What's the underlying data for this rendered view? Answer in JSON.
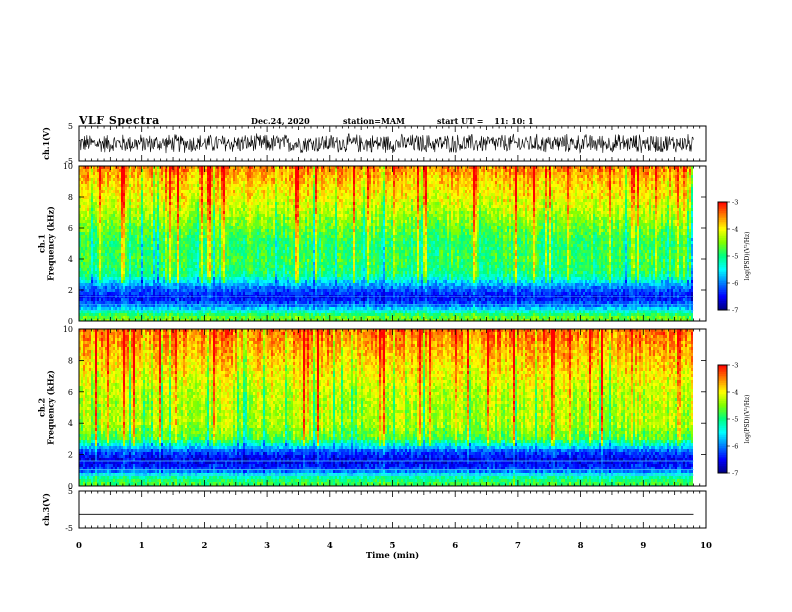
{
  "header": {
    "title": "VLF Spectra",
    "date": "Dec.24, 2020",
    "station": "station=MAM",
    "start_label": "start  UT  =",
    "start_time": "11: 10: 1"
  },
  "chart_data": [
    {
      "type": "line",
      "panel": "waveform-ch1",
      "ylabel": "ch.1(V)",
      "ylim": [
        -5,
        5
      ],
      "yticks": [
        5,
        -5
      ],
      "x_range": [
        0,
        9.8
      ],
      "series_amplitude_range": [
        -3,
        3
      ],
      "color": "#000000"
    },
    {
      "type": "heatmap",
      "panel": "spectrogram-ch1",
      "ylabel": "ch.1\nFrequency (kHz)",
      "ylim": [
        0,
        10
      ],
      "yticks": [
        0,
        2,
        4,
        6,
        8,
        10
      ],
      "x_range": [
        0,
        9.8
      ],
      "colorbar": {
        "label": "log(PSD)(V²/Hz)",
        "range": [
          -7,
          -3
        ],
        "ticks": [
          -3,
          -4,
          -5,
          -6,
          -7
        ]
      },
      "frequency_profile_kHz": [
        {
          "f": 0.2,
          "v": -4.6
        },
        {
          "f": 0.5,
          "v": -5.0
        },
        {
          "f": 0.9,
          "v": -5.9
        },
        {
          "f": 1.5,
          "v": -6.5
        },
        {
          "f": 2.2,
          "v": -6.0
        },
        {
          "f": 3.0,
          "v": -5.0
        },
        {
          "f": 4.0,
          "v": -4.8
        },
        {
          "f": 5.0,
          "v": -4.9
        },
        {
          "f": 6.0,
          "v": -4.6
        },
        {
          "f": 7.0,
          "v": -4.3
        },
        {
          "f": 8.0,
          "v": -4.0
        },
        {
          "f": 9.0,
          "v": -3.8
        },
        {
          "f": 10.0,
          "v": -3.5
        }
      ]
    },
    {
      "type": "heatmap",
      "panel": "spectrogram-ch2",
      "ylabel": "ch.2\nFrequency (kHz)",
      "ylim": [
        0,
        10
      ],
      "yticks": [
        0,
        2,
        4,
        6,
        8,
        10
      ],
      "x_range": [
        0,
        9.8
      ],
      "colorbar": {
        "label": "log(PSD)(V²/Hz)",
        "range": [
          -7,
          -3
        ],
        "ticks": [
          -3,
          -4,
          -5,
          -6,
          -7
        ]
      },
      "frequency_profile_kHz": [
        {
          "f": 0.2,
          "v": -4.8
        },
        {
          "f": 0.6,
          "v": -5.2
        },
        {
          "f": 1.0,
          "v": -6.2
        },
        {
          "f": 1.6,
          "v": -6.6
        },
        {
          "f": 2.2,
          "v": -6.2
        },
        {
          "f": 3.0,
          "v": -4.7
        },
        {
          "f": 4.0,
          "v": -4.3
        },
        {
          "f": 5.0,
          "v": -4.3
        },
        {
          "f": 6.0,
          "v": -4.2
        },
        {
          "f": 7.0,
          "v": -4.0
        },
        {
          "f": 8.0,
          "v": -3.8
        },
        {
          "f": 9.0,
          "v": -3.6
        },
        {
          "f": 10.0,
          "v": -3.4
        }
      ]
    },
    {
      "type": "line",
      "panel": "waveform-ch3",
      "ylabel": "ch.3(V)",
      "ylim": [
        -5,
        5
      ],
      "yticks": [
        5,
        -5
      ],
      "x_range": [
        0,
        9.8
      ],
      "constant_value": -1.3,
      "color": "#000000"
    }
  ],
  "x_axis": {
    "label": "Time (min)",
    "range": [
      0,
      10
    ],
    "ticks": [
      "0",
      "1",
      "2",
      "3",
      "4",
      "5",
      "6",
      "7",
      "8",
      "9",
      "10"
    ]
  },
  "colors": {
    "colormap": [
      "#000080",
      "#0000ff",
      "#0080ff",
      "#00ffff",
      "#00ff80",
      "#80ff00",
      "#ffff00",
      "#ff8000",
      "#ff0000"
    ],
    "axis": "#000000"
  }
}
